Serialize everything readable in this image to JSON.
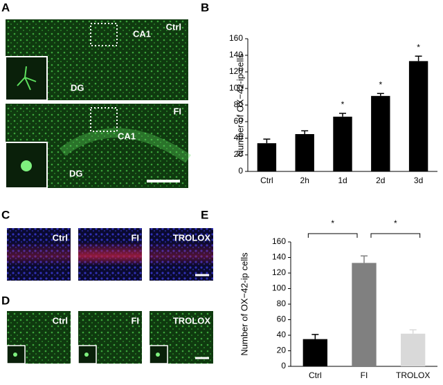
{
  "panel_labels": [
    "A",
    "B",
    "C",
    "D",
    "E"
  ],
  "panel_a": {
    "top": [
      "Ctrl",
      "CA1",
      "DG"
    ],
    "bottom": [
      "FI",
      "CA1",
      "DG"
    ]
  },
  "panel_c": [
    "Ctrl",
    "FI",
    "TROLOX"
  ],
  "panel_d": [
    "Ctrl",
    "FI",
    "TROLOX"
  ],
  "chart_data": [
    {
      "type": "bar",
      "ylabel": "Number of OX−42-ip cells",
      "categories": [
        "Ctrl",
        "2h",
        "1d",
        "2d",
        "3d"
      ],
      "values": [
        34,
        45,
        66,
        91,
        133
      ],
      "errors": [
        5,
        4,
        4,
        3,
        6
      ],
      "significance": [
        null,
        null,
        "*",
        "*",
        "*"
      ],
      "colors": [
        "#000000",
        "#000000",
        "#000000",
        "#000000",
        "#000000"
      ],
      "ylim": [
        0,
        160
      ],
      "yticks": [
        0,
        20,
        40,
        60,
        80,
        100,
        120,
        140,
        160
      ]
    },
    {
      "type": "bar",
      "ylabel": "Number of OX−42-ip cells",
      "categories": [
        "Ctrl",
        "FI",
        "TROLOX"
      ],
      "values": [
        35,
        133,
        42
      ],
      "errors": [
        6,
        9,
        5
      ],
      "colors": [
        "#000000",
        "#808080",
        "#d9d9d9"
      ],
      "comparisons": [
        {
          "pair": [
            0,
            1
          ],
          "label": "*"
        },
        {
          "pair": [
            1,
            2
          ],
          "label": "*"
        }
      ],
      "ylim": [
        0,
        160
      ],
      "yticks": [
        0,
        20,
        40,
        60,
        80,
        100,
        120,
        140,
        160
      ]
    }
  ]
}
